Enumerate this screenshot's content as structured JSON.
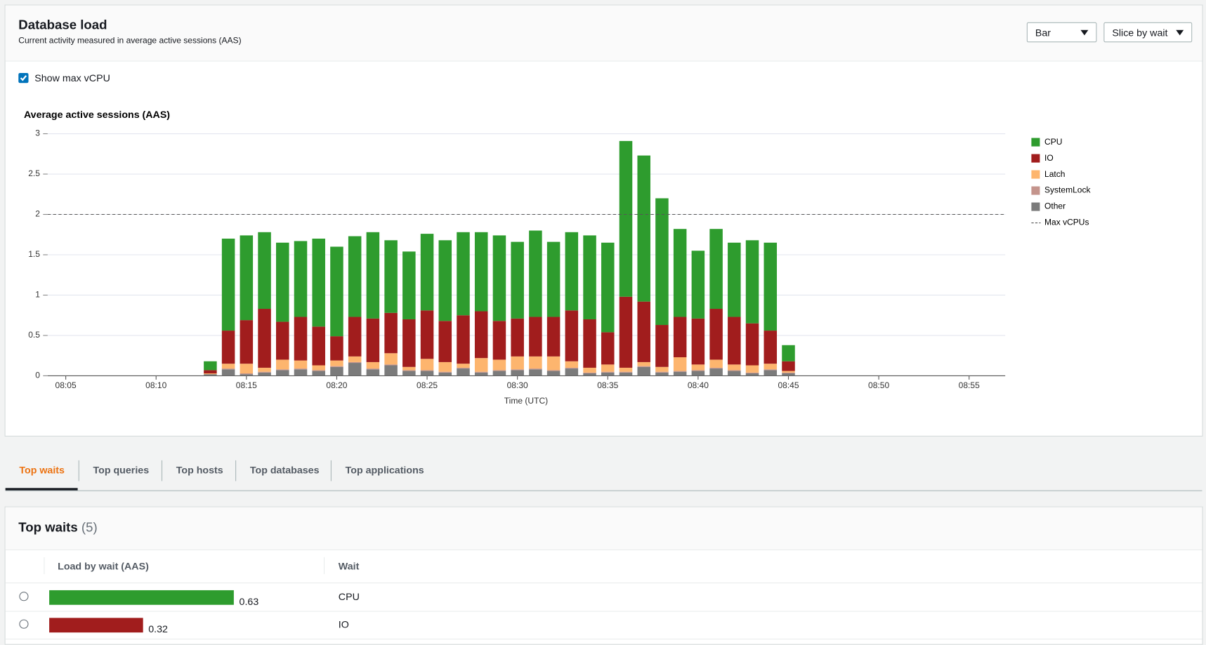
{
  "header": {
    "title": "Database load",
    "subtitle": "Current activity measured in average active sessions (AAS)"
  },
  "controls": {
    "chart_type": "Bar",
    "slice": "Slice by wait",
    "show_max_vcpu": "Show max vCPU",
    "checked": true
  },
  "chart_data": {
    "type": "bar",
    "stacked": true,
    "title": "Average active sessions (AAS)",
    "xlabel": "Time (UTC)",
    "x": [
      "08:13",
      "08:14",
      "08:15",
      "08:16",
      "08:17",
      "08:18",
      "08:19",
      "08:20",
      "08:21",
      "08:22",
      "08:23",
      "08:24",
      "08:25",
      "08:26",
      "08:27",
      "08:28",
      "08:29",
      "08:30",
      "08:31",
      "08:32",
      "08:33",
      "08:34",
      "08:35",
      "08:36",
      "08:37",
      "08:38",
      "08:39",
      "08:40",
      "08:41",
      "08:42",
      "08:43",
      "08:44",
      "08:45"
    ],
    "xlim": [
      "08:04",
      "08:57"
    ],
    "xticks": [
      "08:05",
      "08:10",
      "08:15",
      "08:20",
      "08:25",
      "08:30",
      "08:35",
      "08:40",
      "08:45",
      "08:50",
      "08:55"
    ],
    "ylim": [
      0,
      3
    ],
    "yticks": [
      0,
      0.5,
      1,
      1.5,
      2,
      2.5,
      3
    ],
    "grid": true,
    "series": [
      {
        "name": "Other",
        "color": "#7b7b7b",
        "values": [
          0.02,
          0.08,
          0.02,
          0.04,
          0.07,
          0.08,
          0.06,
          0.11,
          0.16,
          0.08,
          0.13,
          0.06,
          0.06,
          0.04,
          0.09,
          0.04,
          0.06,
          0.07,
          0.08,
          0.06,
          0.09,
          0.03,
          0.04,
          0.04,
          0.11,
          0.04,
          0.05,
          0.06,
          0.09,
          0.06,
          0.03,
          0.07,
          0.03
        ]
      },
      {
        "name": "SystemLock",
        "color": "#c4948c",
        "values": [
          0,
          0.01,
          0.01,
          0.01,
          0.01,
          0.01,
          0.01,
          0.01,
          0.01,
          0.01,
          0.01,
          0.01,
          0.01,
          0.01,
          0.01,
          0.01,
          0.01,
          0.01,
          0.01,
          0.01,
          0.01,
          0.01,
          0.01,
          0.01,
          0.01,
          0.01,
          0.01,
          0.01,
          0.01,
          0.01,
          0.01,
          0.01,
          0.01
        ]
      },
      {
        "name": "Latch",
        "color": "#fdb56e",
        "values": [
          0.01,
          0.06,
          0.12,
          0.05,
          0.12,
          0.1,
          0.06,
          0.07,
          0.07,
          0.08,
          0.14,
          0.04,
          0.14,
          0.12,
          0.05,
          0.17,
          0.13,
          0.16,
          0.15,
          0.17,
          0.08,
          0.06,
          0.09,
          0.05,
          0.05,
          0.06,
          0.17,
          0.07,
          0.1,
          0.07,
          0.09,
          0.07,
          0.02
        ]
      },
      {
        "name": "IO",
        "color": "#a11d1d",
        "values": [
          0.04,
          0.41,
          0.54,
          0.73,
          0.47,
          0.54,
          0.48,
          0.3,
          0.49,
          0.54,
          0.5,
          0.59,
          0.6,
          0.51,
          0.6,
          0.58,
          0.48,
          0.47,
          0.49,
          0.49,
          0.63,
          0.6,
          0.4,
          0.88,
          0.75,
          0.52,
          0.5,
          0.57,
          0.63,
          0.59,
          0.52,
          0.41,
          0.12
        ]
      },
      {
        "name": "CPU",
        "color": "#2e9c2e",
        "values": [
          0.11,
          1.14,
          1.05,
          0.95,
          0.98,
          0.94,
          1.09,
          1.11,
          1.0,
          1.07,
          0.9,
          0.84,
          0.95,
          1.0,
          1.03,
          0.98,
          1.06,
          0.95,
          1.07,
          0.93,
          0.97,
          1.04,
          1.11,
          1.93,
          1.81,
          1.57,
          1.09,
          0.84,
          0.99,
          0.92,
          1.03,
          1.09,
          0.2
        ]
      }
    ],
    "max_line": {
      "name": "Max vCPUs",
      "value": 2,
      "color": "#555555"
    }
  },
  "tabs": [
    "Top waits",
    "Top queries",
    "Top hosts",
    "Top databases",
    "Top applications"
  ],
  "table": {
    "title": "Top waits",
    "count": "(5)",
    "columns": [
      "Load by wait (AAS)",
      "Wait"
    ],
    "rows": [
      {
        "load": 0.63,
        "wait": "CPU",
        "color": "#2e9c2e"
      },
      {
        "load": 0.32,
        "wait": "IO",
        "color": "#a11d1d"
      }
    ]
  }
}
